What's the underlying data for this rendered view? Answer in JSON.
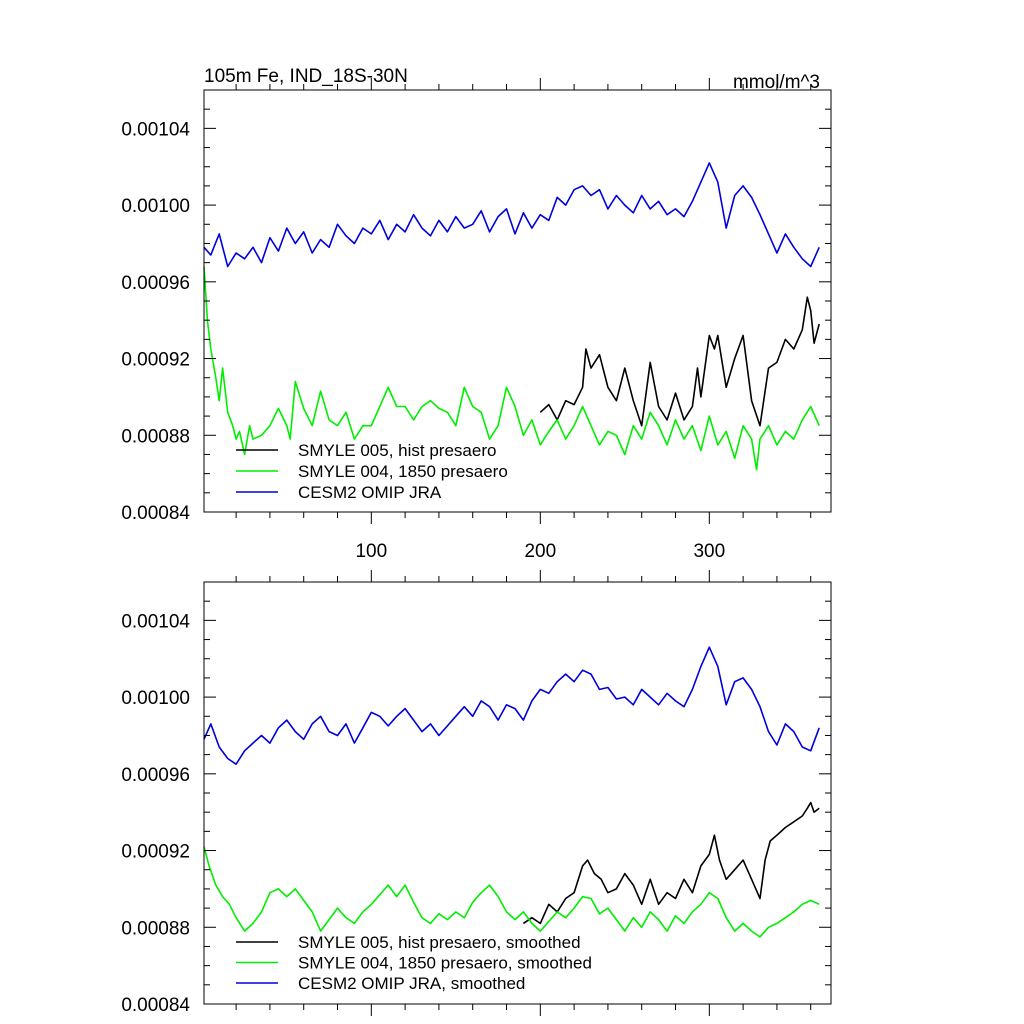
{
  "chart_data": [
    {
      "type": "line",
      "title": "105m Fe, IND_18S-30N",
      "units": "mmol/m^3",
      "xlim": [
        1,
        372
      ],
      "ylim": [
        0.00084,
        0.00106
      ],
      "xticks": [
        100,
        200,
        300
      ],
      "xtick_labels": [
        "100",
        "200",
        "300"
      ],
      "yticks": [
        0.00084,
        0.00088,
        0.00092,
        0.00096,
        0.001,
        0.00104
      ],
      "ytick_labels": [
        "0.00084",
        "0.00088",
        "0.00092",
        "0.00096",
        "0.00100",
        "0.00104"
      ],
      "legend_position": "lower-left",
      "series": [
        {
          "name": "SMYLE 005, hist presaero",
          "color": "#000000",
          "x": [
            200,
            205,
            210,
            215,
            220,
            225,
            227,
            230,
            235,
            240,
            245,
            250,
            255,
            260,
            265,
            270,
            275,
            280,
            285,
            290,
            293,
            295,
            300,
            303,
            305,
            310,
            315,
            320,
            325,
            330,
            335,
            340,
            345,
            350,
            355,
            358,
            360,
            362,
            365
          ],
          "y": [
            0.000892,
            0.000896,
            0.000888,
            0.000898,
            0.000896,
            0.000905,
            0.000925,
            0.000915,
            0.000922,
            0.000905,
            0.000898,
            0.000915,
            0.000898,
            0.000885,
            0.000918,
            0.000895,
            0.000888,
            0.000902,
            0.000888,
            0.000895,
            0.000915,
            0.0009,
            0.000932,
            0.000925,
            0.000932,
            0.000905,
            0.00092,
            0.000932,
            0.000898,
            0.000885,
            0.000915,
            0.000918,
            0.00093,
            0.000925,
            0.000935,
            0.000952,
            0.000945,
            0.000928,
            0.000938
          ]
        },
        {
          "name": "SMYLE 004, 1850 presaero",
          "color": "#00ee00",
          "x": [
            1,
            3,
            5,
            8,
            10,
            12,
            15,
            18,
            20,
            22,
            25,
            28,
            30,
            35,
            40,
            45,
            50,
            52,
            55,
            60,
            65,
            70,
            75,
            80,
            85,
            90,
            95,
            100,
            105,
            110,
            115,
            120,
            125,
            130,
            135,
            140,
            145,
            150,
            155,
            160,
            165,
            170,
            175,
            180,
            185,
            190,
            195,
            200,
            205,
            210,
            215,
            220,
            225,
            230,
            235,
            240,
            245,
            250,
            255,
            260,
            265,
            270,
            275,
            280,
            285,
            290,
            295,
            300,
            305,
            310,
            315,
            320,
            325,
            328,
            330,
            335,
            340,
            345,
            350,
            355,
            360,
            365
          ],
          "y": [
            0.000968,
            0.00094,
            0.000925,
            0.00091,
            0.000898,
            0.000915,
            0.000892,
            0.000885,
            0.000878,
            0.000882,
            0.00087,
            0.000885,
            0.000878,
            0.00088,
            0.000885,
            0.000894,
            0.000885,
            0.000878,
            0.000908,
            0.000894,
            0.000885,
            0.000903,
            0.000888,
            0.000885,
            0.000892,
            0.000878,
            0.000885,
            0.000885,
            0.000895,
            0.000905,
            0.000895,
            0.000895,
            0.000888,
            0.000895,
            0.000898,
            0.000894,
            0.000892,
            0.000885,
            0.000905,
            0.000895,
            0.000892,
            0.000878,
            0.000885,
            0.000905,
            0.000895,
            0.00088,
            0.000888,
            0.000875,
            0.000882,
            0.000888,
            0.000878,
            0.000885,
            0.000895,
            0.000885,
            0.000875,
            0.000882,
            0.00088,
            0.00087,
            0.000885,
            0.000878,
            0.000892,
            0.000885,
            0.000875,
            0.000888,
            0.000878,
            0.000885,
            0.000872,
            0.00089,
            0.000875,
            0.000882,
            0.000868,
            0.000885,
            0.000878,
            0.000862,
            0.000878,
            0.000885,
            0.000875,
            0.000882,
            0.000878,
            0.000888,
            0.000895,
            0.000885
          ]
        },
        {
          "name": "CESM2 OMIP JRA",
          "color": "#0000dd",
          "x": [
            1,
            5,
            10,
            15,
            20,
            25,
            30,
            35,
            40,
            45,
            50,
            55,
            60,
            65,
            70,
            75,
            80,
            85,
            90,
            95,
            100,
            105,
            110,
            115,
            120,
            125,
            130,
            135,
            140,
            145,
            150,
            155,
            160,
            165,
            170,
            175,
            180,
            185,
            190,
            195,
            200,
            205,
            210,
            215,
            220,
            225,
            230,
            235,
            240,
            245,
            250,
            255,
            260,
            265,
            270,
            275,
            280,
            285,
            290,
            295,
            300,
            305,
            310,
            315,
            320,
            325,
            330,
            335,
            340,
            345,
            350,
            355,
            360,
            365
          ],
          "y": [
            0.000978,
            0.000974,
            0.000985,
            0.000968,
            0.000975,
            0.000972,
            0.000978,
            0.00097,
            0.000983,
            0.000976,
            0.000988,
            0.00098,
            0.000986,
            0.000975,
            0.000982,
            0.000978,
            0.00099,
            0.000984,
            0.00098,
            0.000988,
            0.000985,
            0.000992,
            0.000982,
            0.00099,
            0.000986,
            0.000995,
            0.000988,
            0.000984,
            0.000992,
            0.000986,
            0.000994,
            0.000988,
            0.00099,
            0.000997,
            0.000986,
            0.000994,
            0.000998,
            0.000985,
            0.000996,
            0.000988,
            0.000995,
            0.000992,
            0.001004,
            0.001,
            0.001008,
            0.00101,
            0.001005,
            0.001008,
            0.000998,
            0.001005,
            0.001,
            0.000996,
            0.001005,
            0.000998,
            0.001002,
            0.000995,
            0.000998,
            0.000994,
            0.001002,
            0.001012,
            0.001022,
            0.001012,
            0.000988,
            0.001005,
            0.00101,
            0.001004,
            0.000995,
            0.000985,
            0.000975,
            0.000985,
            0.000978,
            0.000972,
            0.000968,
            0.000978
          ]
        }
      ]
    },
    {
      "type": "line",
      "xlim": [
        1,
        372
      ],
      "ylim": [
        0.00084,
        0.00106
      ],
      "xticks": [
        100,
        200,
        300
      ],
      "xtick_labels": [],
      "yticks": [
        0.00084,
        0.00088,
        0.00092,
        0.00096,
        0.001,
        0.00104
      ],
      "ytick_labels": [
        "0.00084",
        "0.00088",
        "0.00092",
        "0.00096",
        "0.00100",
        "0.00104"
      ],
      "legend_position": "lower-left",
      "series": [
        {
          "name": "SMYLE 005, hist presaero, smoothed",
          "color": "#000000",
          "x": [
            190,
            195,
            200,
            205,
            210,
            215,
            220,
            225,
            228,
            232,
            236,
            240,
            245,
            250,
            255,
            260,
            265,
            270,
            275,
            280,
            285,
            290,
            295,
            300,
            303,
            306,
            310,
            315,
            320,
            325,
            330,
            333,
            336,
            340,
            345,
            350,
            355,
            358,
            360,
            362,
            365
          ],
          "y": [
            0.000882,
            0.000885,
            0.000882,
            0.000892,
            0.000888,
            0.000895,
            0.000898,
            0.000912,
            0.000915,
            0.000908,
            0.000905,
            0.000898,
            0.0009,
            0.000908,
            0.000902,
            0.000892,
            0.000905,
            0.000892,
            0.000898,
            0.000895,
            0.000905,
            0.000898,
            0.000912,
            0.000918,
            0.000928,
            0.000915,
            0.000905,
            0.00091,
            0.000915,
            0.000905,
            0.000895,
            0.000915,
            0.000925,
            0.000928,
            0.000932,
            0.000935,
            0.000938,
            0.000942,
            0.000945,
            0.00094,
            0.000942
          ]
        },
        {
          "name": "SMYLE 004, 1850 presaero, smoothed",
          "color": "#00ee00",
          "x": [
            1,
            4,
            8,
            12,
            16,
            20,
            25,
            30,
            35,
            40,
            45,
            50,
            55,
            60,
            65,
            70,
            75,
            80,
            85,
            90,
            95,
            100,
            105,
            110,
            115,
            120,
            125,
            130,
            135,
            140,
            145,
            150,
            155,
            160,
            165,
            170,
            175,
            180,
            185,
            190,
            195,
            200,
            205,
            210,
            215,
            220,
            225,
            230,
            235,
            240,
            245,
            250,
            255,
            260,
            265,
            270,
            275,
            280,
            285,
            290,
            295,
            300,
            305,
            310,
            315,
            320,
            325,
            330,
            335,
            340,
            345,
            350,
            355,
            360,
            365
          ],
          "y": [
            0.000922,
            0.000912,
            0.000902,
            0.000896,
            0.000892,
            0.000885,
            0.000878,
            0.000882,
            0.000888,
            0.000898,
            0.0009,
            0.000896,
            0.0009,
            0.000894,
            0.000888,
            0.000878,
            0.000884,
            0.00089,
            0.000885,
            0.000882,
            0.000888,
            0.000892,
            0.000897,
            0.000902,
            0.000896,
            0.000902,
            0.000893,
            0.000885,
            0.000882,
            0.000887,
            0.000884,
            0.000888,
            0.000885,
            0.000893,
            0.000898,
            0.000902,
            0.000896,
            0.000888,
            0.000884,
            0.000888,
            0.000882,
            0.000878,
            0.000883,
            0.000888,
            0.000885,
            0.00089,
            0.000896,
            0.000895,
            0.000887,
            0.00089,
            0.000884,
            0.000878,
            0.000885,
            0.00088,
            0.000888,
            0.000884,
            0.000878,
            0.000886,
            0.000882,
            0.000888,
            0.000892,
            0.000898,
            0.000895,
            0.000885,
            0.000878,
            0.000882,
            0.000878,
            0.000875,
            0.00088,
            0.000882,
            0.000885,
            0.000888,
            0.000892,
            0.000894,
            0.000892
          ]
        },
        {
          "name": "CESM2 OMIP JRA, smoothed",
          "color": "#0000dd",
          "x": [
            1,
            5,
            10,
            15,
            20,
            25,
            30,
            35,
            40,
            45,
            50,
            55,
            60,
            65,
            70,
            75,
            80,
            85,
            90,
            95,
            100,
            105,
            110,
            115,
            120,
            125,
            130,
            135,
            140,
            145,
            150,
            155,
            160,
            165,
            170,
            175,
            180,
            185,
            190,
            195,
            200,
            205,
            210,
            215,
            220,
            225,
            230,
            235,
            240,
            245,
            250,
            255,
            260,
            265,
            270,
            275,
            280,
            285,
            290,
            295,
            300,
            305,
            310,
            315,
            320,
            325,
            330,
            335,
            340,
            345,
            350,
            355,
            360,
            365
          ],
          "y": [
            0.000978,
            0.000986,
            0.000974,
            0.000968,
            0.000965,
            0.000972,
            0.000976,
            0.00098,
            0.000976,
            0.000984,
            0.000988,
            0.000982,
            0.000978,
            0.000986,
            0.00099,
            0.000982,
            0.00098,
            0.000986,
            0.000976,
            0.000984,
            0.000992,
            0.00099,
            0.000985,
            0.00099,
            0.000994,
            0.000988,
            0.000982,
            0.000986,
            0.00098,
            0.000985,
            0.00099,
            0.000995,
            0.00099,
            0.000998,
            0.000995,
            0.000988,
            0.000996,
            0.000994,
            0.000988,
            0.000998,
            0.001004,
            0.001002,
            0.001008,
            0.001012,
            0.001008,
            0.001014,
            0.001012,
            0.001004,
            0.001005,
            0.000999,
            0.001,
            0.000996,
            0.001004,
            0.001,
            0.000996,
            0.001002,
            0.000998,
            0.000995,
            0.001004,
            0.001016,
            0.001026,
            0.001016,
            0.000996,
            0.001008,
            0.00101,
            0.001004,
            0.000995,
            0.000982,
            0.000975,
            0.000986,
            0.000982,
            0.000974,
            0.000972,
            0.000984
          ]
        }
      ]
    }
  ]
}
